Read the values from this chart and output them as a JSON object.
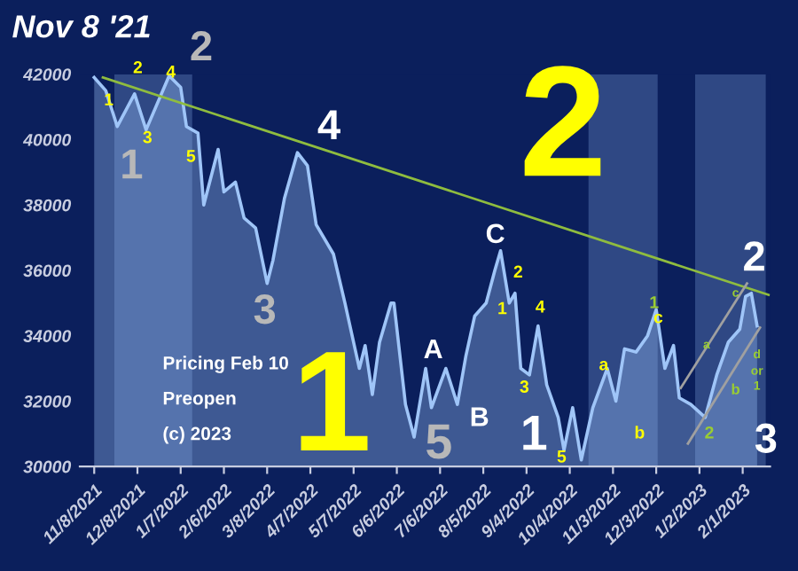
{
  "chart_data": {
    "type": "line",
    "title": "Nov 8 '21",
    "xlim": [
      "2021-10-29",
      "2023-02-20"
    ],
    "ylim": [
      30000,
      42000
    ],
    "yticks": [
      30000,
      32000,
      34000,
      36000,
      38000,
      40000,
      42000
    ],
    "xticks": [
      {
        "value": "2021-11-08",
        "label": "11/8/2021"
      },
      {
        "value": "2021-12-08",
        "label": "12/8/2021"
      },
      {
        "value": "2022-01-07",
        "label": "1/7/2022"
      },
      {
        "value": "2022-02-06",
        "label": "2/6/2022"
      },
      {
        "value": "2022-03-08",
        "label": "3/8/2022"
      },
      {
        "value": "2022-04-07",
        "label": "4/7/2022"
      },
      {
        "value": "2022-05-07",
        "label": "5/7/2022"
      },
      {
        "value": "2022-06-06",
        "label": "6/6/2022"
      },
      {
        "value": "2022-07-06",
        "label": "7/6/2022"
      },
      {
        "value": "2022-08-05",
        "label": "8/5/2022"
      },
      {
        "value": "2022-09-04",
        "label": "9/4/2022"
      },
      {
        "value": "2022-10-04",
        "label": "10/4/2022"
      },
      {
        "value": "2022-11-03",
        "label": "11/3/2022"
      },
      {
        "value": "2022-12-03",
        "label": "12/3/2022"
      },
      {
        "value": "2023-01-02",
        "label": "1/2/2023"
      },
      {
        "value": "2023-02-01",
        "label": "2/1/2023"
      }
    ],
    "grid": false,
    "legend": false,
    "series": [
      {
        "type": "area",
        "color": "#9fc5f8",
        "x": [
          "2021-11-08",
          "2021-11-16",
          "2021-11-24",
          "2021-12-06",
          "2021-12-14",
          "2021-12-30",
          "2022-01-07",
          "2022-01-11",
          "2022-01-19",
          "2022-01-23",
          "2022-02-02",
          "2022-02-06",
          "2022-02-14",
          "2022-02-20",
          "2022-02-28",
          "2022-03-08",
          "2022-03-12",
          "2022-03-20",
          "2022-03-29",
          "2022-04-05",
          "2022-04-11",
          "2022-04-23",
          "2022-05-01",
          "2022-05-11",
          "2022-05-15",
          "2022-05-20",
          "2022-05-25",
          "2022-06-02",
          "2022-06-04",
          "2022-06-12",
          "2022-06-18",
          "2022-06-26",
          "2022-06-30",
          "2022-07-10",
          "2022-07-18",
          "2022-07-24",
          "2022-07-30",
          "2022-08-07",
          "2022-08-13",
          "2022-08-17",
          "2022-08-23",
          "2022-08-27",
          "2022-08-31",
          "2022-09-06",
          "2022-09-12",
          "2022-09-18",
          "2022-09-26",
          "2022-09-30",
          "2022-10-06",
          "2022-10-12",
          "2022-10-20",
          "2022-10-30",
          "2022-11-05",
          "2022-11-11",
          "2022-11-19",
          "2022-11-27",
          "2022-12-03",
          "2022-12-09",
          "2022-12-15",
          "2022-12-19",
          "2022-12-27",
          "2023-01-06",
          "2023-01-14",
          "2023-01-22",
          "2023-01-30",
          "2023-02-03",
          "2023-02-07",
          "2023-02-11"
        ],
        "values": [
          41900,
          41500,
          40400,
          41400,
          40300,
          41950,
          41600,
          40400,
          40200,
          38000,
          39700,
          38400,
          38700,
          37600,
          37300,
          35600,
          36300,
          38200,
          39600,
          39200,
          37400,
          36500,
          35000,
          33000,
          33700,
          32200,
          33800,
          35000,
          35000,
          31900,
          30900,
          33000,
          31800,
          33000,
          31900,
          33400,
          34600,
          35000,
          36000,
          36600,
          35000,
          35300,
          33000,
          32800,
          34300,
          32500,
          31500,
          30500,
          31800,
          30200,
          31800,
          33000,
          32000,
          33600,
          33500,
          34000,
          34800,
          33000,
          33700,
          32100,
          31900,
          31500,
          32800,
          33800,
          34200,
          35200,
          35300,
          34300
        ]
      },
      {
        "color": "#8fbc3f",
        "x": [
          "2021-11-14",
          "2023-02-19"
        ],
        "values": [
          41900,
          35250
        ]
      },
      {
        "color": "#a0a0a0",
        "x": [
          "2022-12-25",
          "2023-02-13"
        ],
        "values": [
          30700,
          34250
        ]
      },
      {
        "color": "#a0a0a0",
        "x": [
          "2022-12-20",
          "2023-02-04"
        ],
        "values": [
          32400,
          35600
        ]
      }
    ],
    "bands": [
      {
        "axis": "x",
        "from": "2021-11-22",
        "to": "2022-01-15",
        "color": "#5a7bb5"
      },
      {
        "axis": "x",
        "from": "2022-10-17",
        "to": "2022-12-04",
        "color": "#5a7bb5"
      },
      {
        "axis": "x",
        "from": "2022-12-30",
        "to": "2023-02-17",
        "color": "#5a7bb5"
      }
    ],
    "annotations": [
      "1",
      "2",
      "4",
      "3",
      "5",
      "1",
      "2",
      "4",
      "3",
      "1",
      "5",
      "A",
      "B",
      "C",
      "2",
      "1",
      "4",
      "3",
      "1",
      "5",
      "2",
      "a",
      "b",
      "1",
      "c",
      "a",
      "b",
      "2",
      "c",
      "d",
      "or",
      "1",
      "2",
      "3",
      "Pricing Feb 10",
      "Preopen",
      "(c) 2023"
    ]
  }
}
